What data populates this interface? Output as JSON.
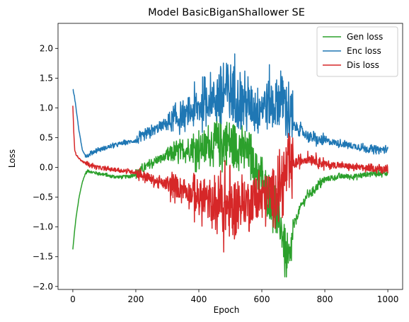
{
  "chart_data": {
    "type": "line",
    "title": "Model BasicBiganShallower SE",
    "xlabel": "Epoch",
    "ylabel": "Loss",
    "xlim": [
      -47,
      1047
    ],
    "ylim": [
      -2.05,
      2.42
    ],
    "xticks": [
      0,
      200,
      400,
      600,
      800,
      1000
    ],
    "xtick_labels": [
      "0",
      "200",
      "400",
      "600",
      "800",
      "1000"
    ],
    "yticks": [
      -2.0,
      -1.5,
      -1.0,
      -0.5,
      0.0,
      0.5,
      1.0,
      1.5,
      2.0
    ],
    "ytick_labels": [
      "−2.0",
      "−1.5",
      "−1.0",
      "−0.5",
      "0.0",
      "0.5",
      "1.0",
      "1.5",
      "2.0"
    ],
    "grid": false,
    "legend_position": "top-right",
    "series": [
      {
        "name": "Gen loss",
        "color": "#2ca02c",
        "x": [
          0,
          5,
          10,
          20,
          30,
          40,
          50,
          60,
          80,
          100,
          120,
          150,
          180,
          200,
          230,
          260,
          300,
          330,
          360,
          380,
          400,
          420,
          440,
          460,
          480,
          500,
          520,
          540,
          560,
          580,
          600,
          620,
          640,
          650,
          660,
          670,
          675,
          680,
          690,
          700,
          720,
          740,
          760,
          780,
          800,
          850,
          900,
          950,
          1000
        ],
        "y": [
          -1.38,
          -1.1,
          -0.85,
          -0.5,
          -0.25,
          -0.1,
          -0.05,
          -0.08,
          -0.1,
          -0.12,
          -0.15,
          -0.16,
          -0.15,
          -0.1,
          0.0,
          0.1,
          0.2,
          0.25,
          0.3,
          0.3,
          0.3,
          0.35,
          0.4,
          0.35,
          0.45,
          0.4,
          0.35,
          0.3,
          0.2,
          0.0,
          -0.2,
          -0.45,
          -0.65,
          -0.8,
          -1.0,
          -1.2,
          -1.55,
          -1.62,
          -1.55,
          -1.0,
          -0.7,
          -0.5,
          -0.4,
          -0.3,
          -0.2,
          -0.15,
          -0.15,
          -0.1,
          -0.1
        ]
      },
      {
        "name": "Enc loss",
        "color": "#1f77b4",
        "x": [
          0,
          5,
          10,
          20,
          30,
          40,
          50,
          60,
          80,
          100,
          150,
          200,
          250,
          300,
          350,
          400,
          420,
          440,
          460,
          480,
          500,
          520,
          540,
          560,
          580,
          600,
          620,
          640,
          660,
          680,
          690,
          700,
          720,
          740,
          760,
          780,
          800,
          850,
          900,
          950,
          1000
        ],
        "y": [
          1.32,
          1.2,
          1.0,
          0.6,
          0.3,
          0.2,
          0.2,
          0.25,
          0.3,
          0.32,
          0.4,
          0.45,
          0.6,
          0.75,
          0.85,
          1.0,
          1.1,
          1.15,
          1.2,
          1.25,
          1.3,
          1.2,
          1.1,
          1.05,
          1.0,
          1.05,
          1.1,
          1.05,
          1.2,
          1.0,
          0.85,
          0.7,
          0.65,
          0.55,
          0.5,
          0.45,
          0.45,
          0.4,
          0.35,
          0.3,
          0.3
        ]
      },
      {
        "name": "Dis loss",
        "color": "#d62728",
        "x": [
          0,
          3,
          6,
          10,
          20,
          30,
          50,
          80,
          100,
          150,
          200,
          250,
          300,
          350,
          380,
          400,
          420,
          440,
          460,
          480,
          500,
          520,
          540,
          560,
          580,
          600,
          620,
          640,
          660,
          680,
          700,
          720,
          740,
          760,
          780,
          800,
          850,
          900,
          950,
          1000
        ],
        "y": [
          1.03,
          0.6,
          0.3,
          0.22,
          0.15,
          0.1,
          0.05,
          0.0,
          -0.02,
          -0.05,
          -0.08,
          -0.2,
          -0.3,
          -0.35,
          -0.45,
          -0.5,
          -0.55,
          -0.6,
          -0.6,
          -0.65,
          -0.7,
          -0.65,
          -0.6,
          -0.55,
          -0.5,
          -0.5,
          -0.45,
          -0.4,
          -0.3,
          -0.1,
          0.05,
          0.1,
          0.15,
          0.15,
          0.1,
          0.05,
          0.03,
          0.0,
          -0.02,
          -0.02
        ]
      }
    ]
  }
}
